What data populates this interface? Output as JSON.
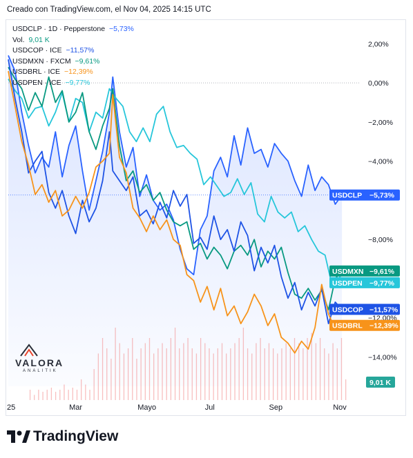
{
  "header": {
    "created_text": "Creado con TradingView.com, el Nov 04, 2025 14:15 UTC"
  },
  "legend": {
    "main": {
      "symbol": "USDCLP · 1D · Pepperstone",
      "change": "−5,73%"
    },
    "volume": {
      "label": "Vol.",
      "value": "9,01 K"
    },
    "items": [
      {
        "symbol": "USDCOP · ICE",
        "change": "−11,57%"
      },
      {
        "symbol": "USDMXN · FXCM",
        "change": "−9,61%"
      },
      {
        "symbol": "USDBRL · ICE",
        "change": "−12,39%"
      },
      {
        "symbol": "USDPEN · ICE",
        "change": "−9,77%"
      }
    ]
  },
  "branding": {
    "watermark_word": "VALORA",
    "watermark_sub": "ANALITIK",
    "tradingview": "TradingView"
  },
  "chart_data": {
    "type": "line",
    "y_unit": "%",
    "ylim": [
      -15.5,
      3.0
    ],
    "y_ticks": [
      2,
      0,
      -2,
      -4,
      -6,
      -8,
      -10,
      -12,
      -14
    ],
    "y_tick_labels": [
      "2,00%",
      "0,00%",
      "−2,00%",
      "−4,00%",
      "",
      "−8,00%",
      "",
      "−12,00%",
      "−14,00%"
    ],
    "x_labels": [
      "25",
      "Mar",
      "Mayo",
      "Jul",
      "Sep",
      "Nov"
    ],
    "x_label_pos": [
      0.0,
      0.197,
      0.4,
      0.6,
      0.79,
      0.98
    ],
    "grid": false,
    "zero_line": "dotted",
    "series": [
      {
        "name": "USDCLP",
        "color": "#2962ff",
        "end_label": "USDCLP",
        "end_value": "−5,73%",
        "final": -5.73,
        "points": [
          [
            0.0,
            1.4
          ],
          [
            0.02,
            0.6
          ],
          [
            0.04,
            -1.5
          ],
          [
            0.06,
            -3.2
          ],
          [
            0.08,
            -4.6
          ],
          [
            0.1,
            -3.8
          ],
          [
            0.12,
            -4.3
          ],
          [
            0.14,
            -2.5
          ],
          [
            0.16,
            -4.8
          ],
          [
            0.18,
            -3.2
          ],
          [
            0.2,
            -2.2
          ],
          [
            0.22,
            -4.5
          ],
          [
            0.24,
            -6.5
          ],
          [
            0.26,
            -5.0
          ],
          [
            0.28,
            -3.5
          ],
          [
            0.3,
            -1.5
          ],
          [
            0.31,
            0.3
          ],
          [
            0.33,
            -2.5
          ],
          [
            0.35,
            -4.3
          ],
          [
            0.37,
            -3.3
          ],
          [
            0.39,
            -5.8
          ],
          [
            0.41,
            -4.7
          ],
          [
            0.43,
            -6.0
          ],
          [
            0.45,
            -6.5
          ],
          [
            0.47,
            -6.2
          ],
          [
            0.49,
            -7.0
          ],
          [
            0.51,
            -8.5
          ],
          [
            0.53,
            -9.5
          ],
          [
            0.55,
            -9.8
          ],
          [
            0.57,
            -7.5
          ],
          [
            0.59,
            -6.8
          ],
          [
            0.61,
            -4.5
          ],
          [
            0.63,
            -3.8
          ],
          [
            0.65,
            -4.8
          ],
          [
            0.67,
            -2.7
          ],
          [
            0.69,
            -4.2
          ],
          [
            0.71,
            -2.3
          ],
          [
            0.73,
            -3.6
          ],
          [
            0.75,
            -3.4
          ],
          [
            0.77,
            -4.3
          ],
          [
            0.79,
            -3.1
          ],
          [
            0.81,
            -3.6
          ],
          [
            0.83,
            -4.0
          ],
          [
            0.85,
            -5.0
          ],
          [
            0.87,
            -5.8
          ],
          [
            0.89,
            -4.2
          ],
          [
            0.91,
            -5.5
          ],
          [
            0.93,
            -4.8
          ],
          [
            0.95,
            -5.2
          ],
          [
            0.97,
            -6.2
          ],
          [
            0.99,
            -5.73
          ]
        ]
      },
      {
        "name": "USDPEN",
        "color": "#26c6da",
        "end_label": "USDPEN",
        "end_value": "−9,77%",
        "final": -9.77,
        "points": [
          [
            0.0,
            0.2
          ],
          [
            0.02,
            -0.4
          ],
          [
            0.04,
            -0.8
          ],
          [
            0.06,
            -1.8
          ],
          [
            0.08,
            -1.3
          ],
          [
            0.1,
            -1.2
          ],
          [
            0.12,
            -2.2
          ],
          [
            0.14,
            -1.5
          ],
          [
            0.16,
            -0.5
          ],
          [
            0.18,
            -2.0
          ],
          [
            0.2,
            -0.8
          ],
          [
            0.22,
            -1.0
          ],
          [
            0.24,
            -2.5
          ],
          [
            0.26,
            -1.5
          ],
          [
            0.28,
            -1.8
          ],
          [
            0.3,
            -0.3
          ],
          [
            0.32,
            -0.8
          ],
          [
            0.34,
            -1.2
          ],
          [
            0.36,
            -2.5
          ],
          [
            0.38,
            -3.0
          ],
          [
            0.4,
            -2.3
          ],
          [
            0.42,
            -3.0
          ],
          [
            0.44,
            -1.6
          ],
          [
            0.46,
            -1.2
          ],
          [
            0.48,
            -2.5
          ],
          [
            0.5,
            -3.3
          ],
          [
            0.52,
            -3.2
          ],
          [
            0.54,
            -3.6
          ],
          [
            0.56,
            -3.9
          ],
          [
            0.58,
            -5.2
          ],
          [
            0.6,
            -4.8
          ],
          [
            0.62,
            -5.3
          ],
          [
            0.64,
            -5.8
          ],
          [
            0.66,
            -5.6
          ],
          [
            0.68,
            -4.9
          ],
          [
            0.7,
            -5.7
          ],
          [
            0.72,
            -5.1
          ],
          [
            0.74,
            -6.7
          ],
          [
            0.76,
            -7.1
          ],
          [
            0.78,
            -5.8
          ],
          [
            0.8,
            -6.6
          ],
          [
            0.82,
            -6.9
          ],
          [
            0.84,
            -6.6
          ],
          [
            0.86,
            -7.6
          ],
          [
            0.88,
            -7.3
          ],
          [
            0.9,
            -8.0
          ],
          [
            0.92,
            -8.6
          ],
          [
            0.94,
            -8.8
          ],
          [
            0.96,
            -10.3
          ],
          [
            0.98,
            -10.0
          ],
          [
            0.99,
            -9.77
          ]
        ]
      },
      {
        "name": "USDMXN",
        "color": "#089981",
        "end_label": "USDMXN",
        "end_value": "−9,61%",
        "final": -9.61,
        "points": [
          [
            0.0,
            0.8
          ],
          [
            0.02,
            0.2
          ],
          [
            0.04,
            -0.3
          ],
          [
            0.06,
            -1.4
          ],
          [
            0.08,
            -0.5
          ],
          [
            0.1,
            -1.2
          ],
          [
            0.12,
            0.3
          ],
          [
            0.14,
            -1.0
          ],
          [
            0.16,
            -0.4
          ],
          [
            0.18,
            -2.0
          ],
          [
            0.2,
            -1.5
          ],
          [
            0.22,
            -0.5
          ],
          [
            0.24,
            -2.5
          ],
          [
            0.26,
            -3.4
          ],
          [
            0.28,
            -2.2
          ],
          [
            0.3,
            -1.3
          ],
          [
            0.31,
            -0.3
          ],
          [
            0.33,
            -3.2
          ],
          [
            0.35,
            -5.0
          ],
          [
            0.37,
            -4.5
          ],
          [
            0.39,
            -5.6
          ],
          [
            0.41,
            -5.2
          ],
          [
            0.43,
            -6.0
          ],
          [
            0.45,
            -5.6
          ],
          [
            0.47,
            -6.5
          ],
          [
            0.49,
            -7.1
          ],
          [
            0.51,
            -7.3
          ],
          [
            0.53,
            -7.1
          ],
          [
            0.55,
            -8.5
          ],
          [
            0.57,
            -8.2
          ],
          [
            0.59,
            -9.0
          ],
          [
            0.61,
            -8.4
          ],
          [
            0.63,
            -8.8
          ],
          [
            0.65,
            -9.5
          ],
          [
            0.67,
            -8.6
          ],
          [
            0.69,
            -8.3
          ],
          [
            0.71,
            -8.8
          ],
          [
            0.73,
            -8.0
          ],
          [
            0.75,
            -9.4
          ],
          [
            0.77,
            -8.6
          ],
          [
            0.79,
            -9.0
          ],
          [
            0.81,
            -8.4
          ],
          [
            0.83,
            -9.7
          ],
          [
            0.85,
            -10.8
          ],
          [
            0.87,
            -11.0
          ],
          [
            0.89,
            -10.5
          ],
          [
            0.91,
            -11.1
          ],
          [
            0.93,
            -10.6
          ],
          [
            0.95,
            -11.6
          ],
          [
            0.97,
            -10.0
          ],
          [
            0.99,
            -9.61
          ]
        ]
      },
      {
        "name": "USDCOP",
        "color": "#1e53e5",
        "end_label": "USDCOP",
        "end_value": "−11,57%",
        "final": -11.57,
        "points": [
          [
            0.0,
            1.2
          ],
          [
            0.02,
            -0.8
          ],
          [
            0.04,
            -2.5
          ],
          [
            0.06,
            -4.6
          ],
          [
            0.08,
            -4.0
          ],
          [
            0.1,
            -3.5
          ],
          [
            0.12,
            -5.6
          ],
          [
            0.14,
            -6.4
          ],
          [
            0.16,
            -5.5
          ],
          [
            0.18,
            -6.8
          ],
          [
            0.2,
            -7.7
          ],
          [
            0.22,
            -6.0
          ],
          [
            0.24,
            -7.1
          ],
          [
            0.26,
            -6.4
          ],
          [
            0.28,
            -5.0
          ],
          [
            0.3,
            -2.5
          ],
          [
            0.31,
            -4.5
          ],
          [
            0.33,
            -5.0
          ],
          [
            0.35,
            -5.5
          ],
          [
            0.37,
            -4.8
          ],
          [
            0.39,
            -6.8
          ],
          [
            0.41,
            -6.5
          ],
          [
            0.43,
            -7.2
          ],
          [
            0.45,
            -6.1
          ],
          [
            0.47,
            -6.9
          ],
          [
            0.49,
            -5.5
          ],
          [
            0.51,
            -6.3
          ],
          [
            0.53,
            -5.7
          ],
          [
            0.55,
            -8.2
          ],
          [
            0.57,
            -7.9
          ],
          [
            0.59,
            -8.5
          ],
          [
            0.61,
            -6.8
          ],
          [
            0.63,
            -8.0
          ],
          [
            0.65,
            -7.5
          ],
          [
            0.67,
            -8.6
          ],
          [
            0.69,
            -7.1
          ],
          [
            0.71,
            -7.8
          ],
          [
            0.73,
            -9.6
          ],
          [
            0.75,
            -8.4
          ],
          [
            0.77,
            -9.2
          ],
          [
            0.79,
            -8.3
          ],
          [
            0.81,
            -9.9
          ],
          [
            0.83,
            -11.0
          ],
          [
            0.85,
            -10.2
          ],
          [
            0.87,
            -11.6
          ],
          [
            0.89,
            -10.7
          ],
          [
            0.91,
            -11.4
          ],
          [
            0.93,
            -10.5
          ],
          [
            0.95,
            -12.3
          ],
          [
            0.97,
            -11.2
          ],
          [
            0.99,
            -11.57
          ]
        ]
      },
      {
        "name": "USDBRL",
        "color": "#f7931a",
        "end_label": "USDBRL",
        "end_value": "−12,39%",
        "final": -12.39,
        "points": [
          [
            0.0,
            0.6
          ],
          [
            0.02,
            -1.2
          ],
          [
            0.04,
            -3.0
          ],
          [
            0.06,
            -4.2
          ],
          [
            0.08,
            -5.7
          ],
          [
            0.1,
            -5.2
          ],
          [
            0.12,
            -6.1
          ],
          [
            0.14,
            -5.5
          ],
          [
            0.16,
            -6.8
          ],
          [
            0.18,
            -6.5
          ],
          [
            0.2,
            -5.8
          ],
          [
            0.22,
            -6.4
          ],
          [
            0.24,
            -5.6
          ],
          [
            0.26,
            -4.3
          ],
          [
            0.28,
            -4.0
          ],
          [
            0.3,
            -3.6
          ],
          [
            0.31,
            -0.6
          ],
          [
            0.33,
            -3.8
          ],
          [
            0.35,
            -4.6
          ],
          [
            0.37,
            -6.4
          ],
          [
            0.39,
            -6.9
          ],
          [
            0.41,
            -7.6
          ],
          [
            0.43,
            -6.8
          ],
          [
            0.45,
            -7.5
          ],
          [
            0.47,
            -7.0
          ],
          [
            0.49,
            -8.0
          ],
          [
            0.51,
            -8.3
          ],
          [
            0.53,
            -9.8
          ],
          [
            0.55,
            -10.1
          ],
          [
            0.57,
            -11.2
          ],
          [
            0.59,
            -10.4
          ],
          [
            0.61,
            -11.6
          ],
          [
            0.63,
            -10.5
          ],
          [
            0.65,
            -11.9
          ],
          [
            0.67,
            -11.4
          ],
          [
            0.69,
            -12.3
          ],
          [
            0.71,
            -11.7
          ],
          [
            0.73,
            -10.8
          ],
          [
            0.75,
            -11.4
          ],
          [
            0.77,
            -12.4
          ],
          [
            0.79,
            -11.8
          ],
          [
            0.81,
            -13.0
          ],
          [
            0.83,
            -13.3
          ],
          [
            0.85,
            -13.8
          ],
          [
            0.87,
            -13.2
          ],
          [
            0.89,
            -13.6
          ],
          [
            0.91,
            -12.5
          ],
          [
            0.93,
            -10.3
          ],
          [
            0.95,
            -11.8
          ],
          [
            0.97,
            -12.6
          ],
          [
            0.99,
            -12.39
          ]
        ]
      }
    ],
    "volume": {
      "label": "9,01 K",
      "bars": [
        0.0,
        0.0,
        0.0,
        0.0,
        0.0,
        0.1,
        0.05,
        0.1,
        0.08,
        0.1,
        0.12,
        0.08,
        0.1,
        0.15,
        0.1,
        0.12,
        0.1,
        0.2,
        0.15,
        0.1,
        0.3,
        0.45,
        0.6,
        0.5,
        0.4,
        0.7,
        0.55,
        0.45,
        0.5,
        0.6,
        0.4,
        0.5,
        0.55,
        0.6,
        0.45,
        0.5,
        0.55,
        0.5,
        0.6,
        0.7,
        0.5,
        0.55,
        0.6,
        0.5,
        0.45,
        0.6,
        0.55,
        0.5,
        0.45,
        0.5,
        0.55,
        0.45,
        0.5,
        0.55,
        0.6,
        0.7,
        0.5,
        0.45,
        0.55,
        0.6,
        0.5,
        0.55,
        0.5,
        0.45,
        0.5,
        0.55,
        0.5,
        0.6,
        0.55,
        0.5,
        0.6,
        0.65,
        0.55,
        0.6,
        0.5,
        0.45,
        0.55,
        0.5,
        0.6,
        0.2
      ]
    }
  }
}
